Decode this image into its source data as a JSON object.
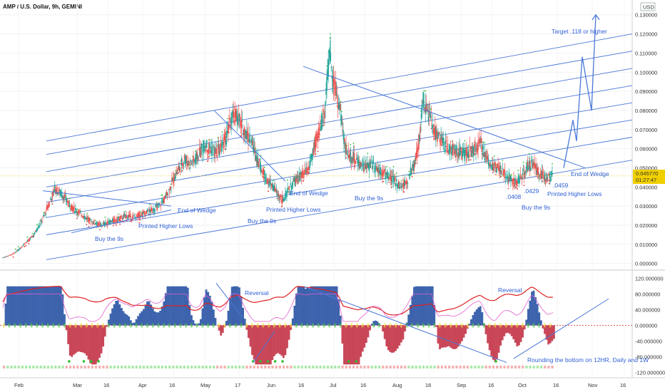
{
  "chart_data": {
    "type": "candlestick",
    "title": "AMP / U.S. Dollar, 9h, GEMINI",
    "currency": "USD",
    "y_ticks": [
      0,
      0.01,
      0.02,
      0.03,
      0.04,
      0.05,
      0.06,
      0.07,
      0.08,
      0.09,
      0.1,
      0.11,
      0.12,
      0.13
    ],
    "y_tick_labels": [
      "0.000000",
      "0.010000",
      "0.020000",
      "0.030000",
      "0.040000",
      "0.050000",
      "0.060000",
      "0.070000",
      "0.080000",
      "0.090000",
      "0.100000",
      "0.110000",
      "0.120000",
      "0.130000"
    ],
    "ylim": [
      -0.002,
      0.134
    ],
    "x_ticks": [
      "Feb",
      "Mar",
      "16",
      "Apr",
      "16",
      "May",
      "17",
      "Jun",
      "16",
      "Jul",
      "16",
      "Aug",
      "16",
      "Sep",
      "16",
      "Oct",
      "16",
      "Nov",
      "16"
    ],
    "last_price": "0.045770",
    "countdown": "01:27:47",
    "price_series": [
      0.003,
      0.004,
      0.005,
      0.007,
      0.01,
      0.012,
      0.015,
      0.02,
      0.025,
      0.032,
      0.039,
      0.037,
      0.034,
      0.03,
      0.028,
      0.026,
      0.024,
      0.022,
      0.021,
      0.02,
      0.021,
      0.022,
      0.023,
      0.024,
      0.025,
      0.024,
      0.025,
      0.026,
      0.027,
      0.028,
      0.03,
      0.033,
      0.038,
      0.045,
      0.05,
      0.055,
      0.052,
      0.054,
      0.058,
      0.062,
      0.06,
      0.058,
      0.06,
      0.066,
      0.075,
      0.078,
      0.072,
      0.068,
      0.063,
      0.055,
      0.048,
      0.043,
      0.04,
      0.036,
      0.033,
      0.038,
      0.042,
      0.045,
      0.046,
      0.05,
      0.06,
      0.07,
      0.08,
      0.11,
      0.092,
      0.08,
      0.06,
      0.056,
      0.054,
      0.052,
      0.05,
      0.052,
      0.05,
      0.048,
      0.046,
      0.044,
      0.042,
      0.04,
      0.044,
      0.05,
      0.06,
      0.085,
      0.078,
      0.07,
      0.066,
      0.062,
      0.06,
      0.059,
      0.058,
      0.057,
      0.058,
      0.06,
      0.063,
      0.056,
      0.052,
      0.05,
      0.048,
      0.046,
      0.044,
      0.042,
      0.045,
      0.05,
      0.052,
      0.048,
      0.046,
      0.045,
      0.046
    ],
    "oscillator": {
      "y_ticks": [
        120,
        80,
        40,
        0,
        -40,
        -80,
        -120
      ],
      "y_tick_labels": [
        "120.000000",
        "80.000000",
        "40.000000",
        "0.000000",
        "-40.000000",
        "-80.000000",
        "-120.000000"
      ],
      "ylim": [
        -125,
        125
      ]
    },
    "annotations": [
      "Target .118 or higher",
      "End of Wedge",
      "End of Wedge",
      "End of Wedge",
      "Printed Higher Lows",
      "Printed Higher Lows",
      "Printed Higher Lows",
      "Buy the 9s",
      "Buy the 9s",
      "Buy the 9s",
      "Buy the 9s",
      ".0459",
      ".0429",
      ".0408",
      "Reversal",
      "Reversal",
      "Rounding the bottom on 12HR, Daily and 1W"
    ]
  },
  "colors": {
    "channel": "#4a78d8",
    "annotation": "#2f5fd6",
    "price_label": "#f0d000",
    "oscillator_blue": "#1e4aa0",
    "oscillator_red": "#c0283c",
    "oscillator_green": "#46c846",
    "oscillator_yellow": "#f0e040",
    "line_red": "#e02020",
    "line_pink": "#e060d0"
  }
}
